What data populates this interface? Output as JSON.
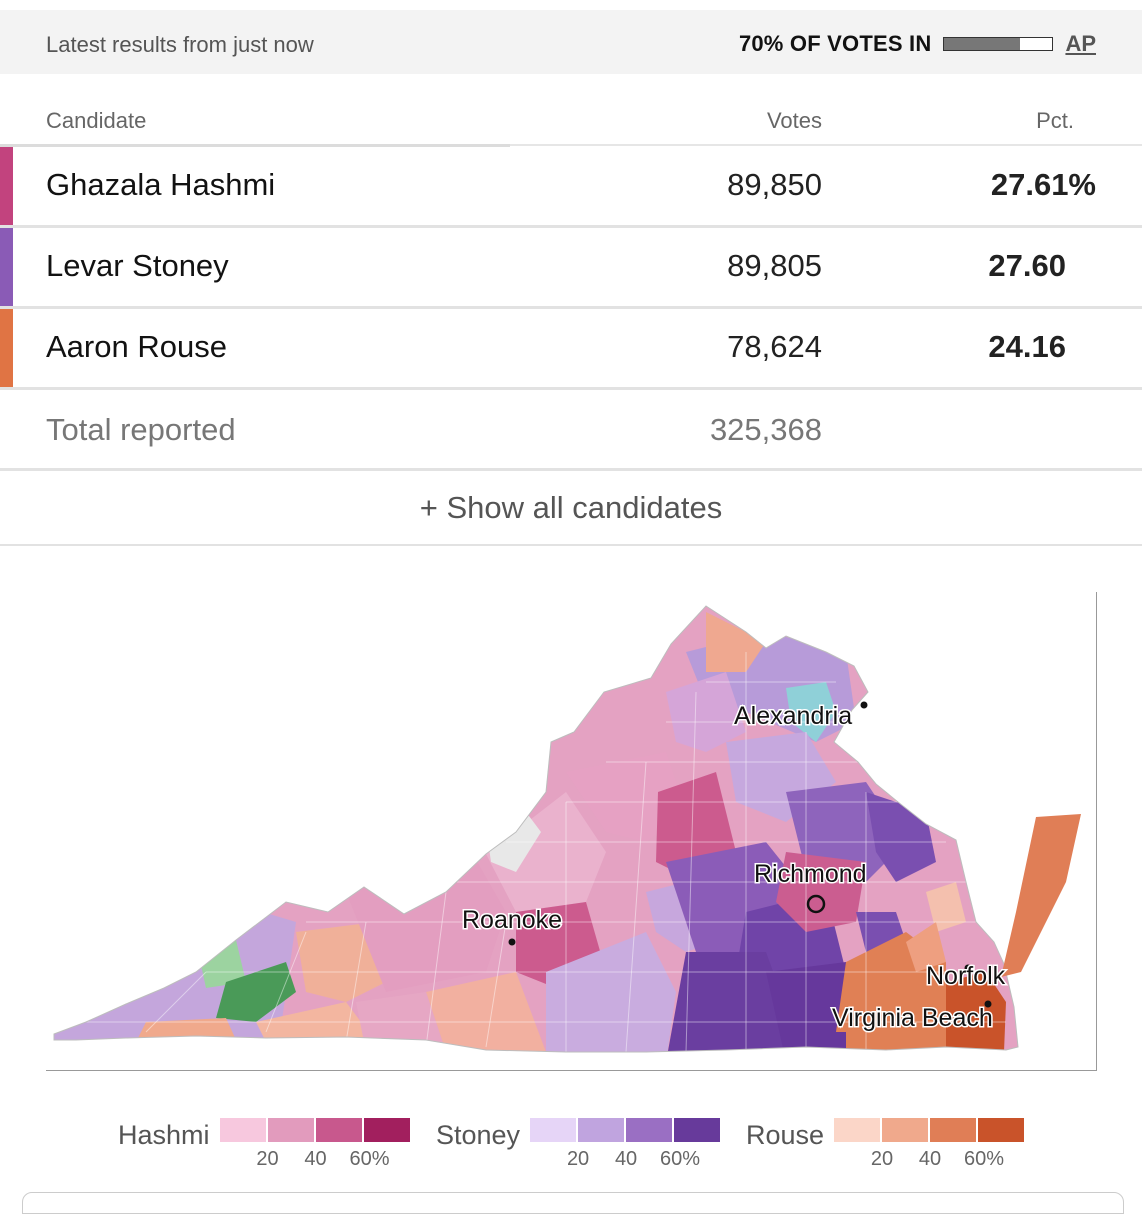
{
  "status": {
    "updated_text": "Latest results from just now",
    "reporting_text": "70% OF VOTES IN",
    "reporting_fraction": 0.7,
    "source": "AP"
  },
  "table": {
    "headers": {
      "candidate": "Candidate",
      "votes": "Votes",
      "pct": "Pct."
    },
    "candidates": [
      {
        "name": "Ghazala Hashmi",
        "votes": "89,850",
        "pct": "27.61%",
        "color": "#c2437e"
      },
      {
        "name": "Levar Stoney",
        "votes": "89,805",
        "pct": "27.60",
        "color": "#8a5bb6"
      },
      {
        "name": "Aaron Rouse",
        "votes": "78,624",
        "pct": "24.16",
        "color": "#e07444"
      }
    ],
    "total": {
      "label": "Total reported",
      "votes": "325,368"
    },
    "show_all_label": "+ Show all candidates"
  },
  "map": {
    "cities": [
      "Alexandria",
      "Richmond",
      "Roanoke",
      "Norfolk",
      "Virginia Beach"
    ]
  },
  "legend": [
    {
      "name": "Hashmi",
      "colors": [
        "#f7c8de",
        "#e29bbd",
        "#c8588d",
        "#a21f5e"
      ],
      "ticks": [
        "20",
        "40",
        "60%"
      ]
    },
    {
      "name": "Stoney",
      "colors": [
        "#e6d5f7",
        "#c0a4df",
        "#9a6fc3",
        "#673a9b"
      ],
      "ticks": [
        "20",
        "40",
        "60%"
      ]
    },
    {
      "name": "Rouse",
      "colors": [
        "#fbd6c8",
        "#f0a98c",
        "#e07e56",
        "#c9532a"
      ],
      "ticks": [
        "20",
        "40",
        "60%"
      ]
    }
  ]
}
